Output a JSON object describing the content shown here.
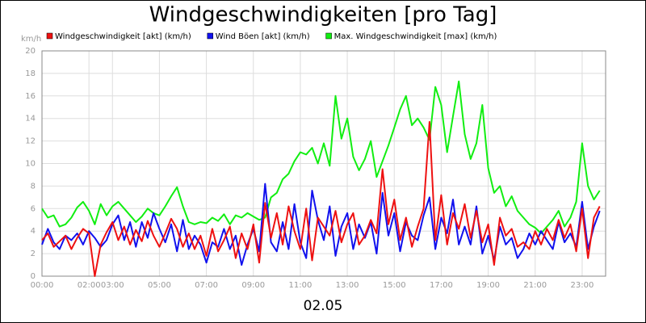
{
  "chart_data": {
    "type": "line",
    "title": "Windgeschwindigkeiten [pro Tag]",
    "y_label": "km/h",
    "x_label": "02.05",
    "xlim": [
      0,
      24
    ],
    "xticks": [
      {
        "value": 0,
        "label": "00:00"
      },
      {
        "value": 2,
        "label": "02:00"
      },
      {
        "value": 3,
        "label": "03:00"
      },
      {
        "value": 5,
        "label": "05:00"
      },
      {
        "value": 7,
        "label": "07:00"
      },
      {
        "value": 9,
        "label": "09:00"
      },
      {
        "value": 11,
        "label": "11:00"
      },
      {
        "value": 13,
        "label": "13:00"
      },
      {
        "value": 15,
        "label": "15:00"
      },
      {
        "value": 17,
        "label": "17:00"
      },
      {
        "value": 19,
        "label": "19:00"
      },
      {
        "value": 21,
        "label": "21:00"
      },
      {
        "value": 23,
        "label": "23:00"
      }
    ],
    "ylim": [
      0,
      20
    ],
    "yticks": [
      0,
      2,
      4,
      6,
      8,
      10,
      12,
      14,
      16,
      18,
      20
    ],
    "grid": true,
    "x": [
      0,
      0.25,
      0.5,
      0.75,
      1,
      1.25,
      1.5,
      1.75,
      2,
      2.25,
      2.5,
      2.75,
      3,
      3.25,
      3.5,
      3.75,
      4,
      4.25,
      4.5,
      4.75,
      5,
      5.25,
      5.5,
      5.75,
      6,
      6.25,
      6.5,
      6.75,
      7,
      7.25,
      7.5,
      7.75,
      8,
      8.25,
      8.5,
      8.75,
      9,
      9.25,
      9.5,
      9.75,
      10,
      10.25,
      10.5,
      10.75,
      11,
      11.25,
      11.5,
      11.75,
      12,
      12.25,
      12.5,
      12.75,
      13,
      13.25,
      13.5,
      13.75,
      14,
      14.25,
      14.5,
      14.75,
      15,
      15.25,
      15.5,
      15.75,
      16,
      16.25,
      16.5,
      16.75,
      17,
      17.25,
      17.5,
      17.75,
      18,
      18.25,
      18.5,
      18.75,
      19,
      19.25,
      19.5,
      19.75,
      20,
      20.25,
      20.5,
      20.75,
      21,
      21.25,
      21.5,
      21.75,
      22,
      22.25,
      22.5,
      22.75,
      23,
      23.25,
      23.5,
      23.75
    ],
    "series": [
      {
        "name": "Windgeschwindigkeit [akt] (km/h)",
        "color": "#ee1111",
        "values": [
          3.2,
          3.8,
          2.6,
          3.1,
          3.6,
          2.4,
          3.4,
          4.2,
          3.8,
          0.0,
          2.8,
          3.9,
          4.8,
          3.2,
          4.4,
          2.8,
          4.1,
          3.1,
          4.9,
          3.6,
          2.6,
          3.8,
          5.1,
          4.2,
          2.6,
          3.8,
          2.4,
          3.6,
          1.8,
          4.2,
          2.2,
          3.2,
          4.4,
          1.6,
          3.8,
          2.4,
          4.6,
          1.2,
          6.5,
          3.4,
          5.6,
          2.8,
          6.2,
          4.0,
          2.4,
          6.0,
          1.4,
          5.2,
          4.4,
          3.6,
          5.8,
          3.0,
          4.6,
          5.6,
          2.8,
          3.6,
          5.0,
          3.8,
          9.5,
          4.6,
          6.8,
          3.2,
          5.2,
          2.6,
          4.4,
          6.0,
          13.7,
          3.2,
          7.2,
          2.8,
          5.6,
          4.2,
          6.4,
          3.4,
          5.8,
          3.0,
          4.6,
          1.0,
          5.2,
          3.6,
          4.2,
          2.6,
          3.0,
          2.4,
          4.0,
          2.8,
          4.2,
          3.2,
          5.0,
          3.4,
          4.6,
          2.2,
          6.0,
          1.6,
          5.2,
          6.2
        ]
      },
      {
        "name": "Wind Böen [akt] (km/h)",
        "color": "#1111ee",
        "values": [
          2.8,
          4.2,
          3.0,
          2.4,
          3.6,
          3.2,
          3.8,
          2.8,
          4.0,
          3.4,
          2.6,
          3.2,
          4.6,
          5.4,
          3.2,
          4.8,
          2.6,
          4.8,
          3.4,
          5.6,
          4.2,
          3.0,
          4.6,
          2.2,
          5.0,
          2.4,
          3.6,
          2.8,
          1.2,
          3.0,
          2.6,
          4.2,
          2.4,
          3.6,
          1.0,
          2.8,
          4.2,
          2.2,
          8.2,
          3.0,
          2.2,
          4.8,
          2.4,
          6.4,
          3.0,
          1.6,
          7.6,
          5.0,
          3.2,
          6.2,
          1.8,
          4.4,
          5.6,
          2.4,
          4.6,
          3.4,
          4.8,
          2.0,
          7.4,
          3.6,
          5.6,
          2.2,
          4.8,
          3.6,
          3.2,
          5.4,
          7.0,
          2.4,
          5.2,
          3.8,
          6.8,
          2.8,
          4.4,
          2.8,
          6.2,
          2.0,
          3.6,
          1.4,
          4.4,
          2.8,
          3.4,
          1.6,
          2.4,
          3.8,
          2.8,
          4.0,
          3.2,
          2.4,
          4.8,
          3.0,
          3.8,
          2.6,
          6.6,
          2.4,
          4.4,
          5.8
        ]
      },
      {
        "name": "Max. Windgeschwindigkeit [max] (km/h)",
        "color": "#11ee11",
        "values": [
          6,
          5.2,
          5.4,
          4.4,
          4.6,
          5.2,
          6.1,
          6.6,
          5.8,
          4.6,
          6.4,
          5.4,
          6.2,
          6.6,
          6.0,
          5.4,
          4.8,
          5.3,
          6.0,
          5.6,
          5.4,
          6.2,
          7.1,
          7.9,
          6.2,
          4.8,
          4.6,
          4.8,
          4.7,
          5.2,
          4.9,
          5.5,
          4.6,
          5.4,
          5.2,
          5.6,
          5.3,
          5.0,
          5.2,
          7.0,
          7.4,
          8.6,
          9.1,
          10.2,
          11.0,
          10.8,
          11.4,
          10.0,
          11.8,
          9.8,
          16.0,
          12.2,
          14.0,
          10.6,
          9.4,
          10.4,
          12.0,
          8.8,
          10.2,
          11.6,
          13.2,
          14.8,
          16.0,
          13.4,
          14.0,
          13.2,
          12.1,
          16.8,
          15.2,
          11.0,
          14.2,
          17.3,
          12.6,
          10.4,
          11.8,
          15.2,
          9.6,
          7.4,
          8.0,
          6.2,
          7.1,
          5.8,
          5.2,
          4.6,
          4.3,
          3.8,
          4.4,
          5.0,
          5.8,
          4.4,
          5.2,
          6.6,
          11.8,
          8.0,
          6.8,
          7.6
        ]
      }
    ]
  }
}
